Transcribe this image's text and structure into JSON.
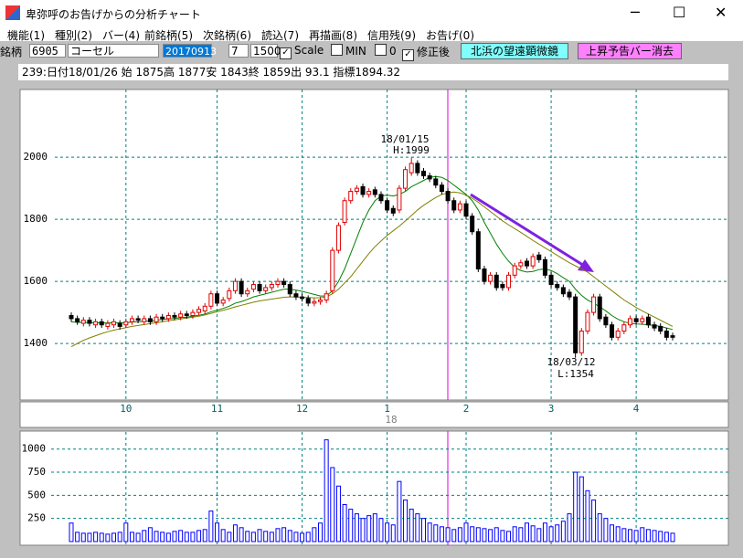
{
  "window": {
    "title": "卑弥呼のお告げからの分析チャート"
  },
  "menu": [
    "機能(1)",
    "種別(2)",
    "バー(4)",
    "前銘柄(5)",
    "次銘柄(6)",
    "読込(7)",
    "再描画(8)",
    "信用残(9)",
    "お告げ(0)"
  ],
  "toolbar": {
    "label": "銘柄",
    "code": "6905",
    "name": "コーセル",
    "date": "20170913",
    "period": "7",
    "count": "1500",
    "scale": "Scale",
    "min": "MIN",
    "min_value": "0",
    "adjusted": "修正後",
    "button1": "北浜の望遠顕微鏡",
    "button2": "上昇予告バー消去"
  },
  "info": "239:日付18/01/26 始 1875高 1877安 1843終 1859出 93.1 指標1894.32",
  "chart_data": {
    "type": "candlestick",
    "categories": [
      null,
      null,
      null,
      null,
      null,
      null,
      null,
      null,
      null,
      "10",
      null,
      null,
      null,
      null,
      null,
      null,
      null,
      null,
      null,
      null,
      null,
      null,
      null,
      null,
      "11",
      null,
      null,
      null,
      null,
      null,
      null,
      null,
      null,
      null,
      null,
      null,
      null,
      null,
      "12",
      null,
      null,
      null,
      null,
      null,
      null,
      null,
      null,
      null,
      null,
      null,
      null,
      null,
      "1",
      null,
      null,
      null,
      null,
      null,
      null,
      null,
      null,
      null,
      null,
      null,
      null,
      "2",
      null,
      null,
      null,
      null,
      null,
      null,
      null,
      null,
      null,
      null,
      null,
      null,
      null,
      "3",
      null,
      null,
      null,
      null,
      null,
      null,
      null,
      null,
      null,
      null,
      null,
      null,
      null,
      "4",
      null,
      null,
      null,
      null,
      null,
      null
    ],
    "year_label": "18",
    "open": [
      1490,
      1480,
      1465,
      1475,
      1460,
      1470,
      1455,
      1460,
      1465,
      1460,
      1470,
      1480,
      1470,
      1480,
      1470,
      1485,
      1480,
      1490,
      1485,
      1495,
      1490,
      1500,
      1505,
      1520,
      1560,
      1530,
      1545,
      1570,
      1600,
      1560,
      1575,
      1590,
      1570,
      1580,
      1590,
      1600,
      1590,
      1560,
      1550,
      1545,
      1530,
      1535,
      1540,
      1570,
      1700,
      1790,
      1860,
      1890,
      1905,
      1880,
      1895,
      1880,
      1860,
      1835,
      1830,
      1900,
      1950,
      1980,
      1955,
      1940,
      1930,
      1910,
      1890,
      1860,
      1830,
      1850,
      1810,
      1760,
      1640,
      1600,
      1620,
      1590,
      1580,
      1620,
      1650,
      1665,
      1650,
      1685,
      1670,
      1620,
      1590,
      1580,
      1565,
      1550,
      1370,
      1440,
      1500,
      1550,
      1485,
      1460,
      1420,
      1440,
      1460,
      1480,
      1470,
      1485,
      1460,
      1455,
      1440,
      1425
    ],
    "high": [
      1500,
      1490,
      1485,
      1485,
      1480,
      1480,
      1475,
      1480,
      1475,
      1480,
      1490,
      1490,
      1490,
      1490,
      1495,
      1495,
      1500,
      1500,
      1505,
      1505,
      1510,
      1520,
      1530,
      1570,
      1570,
      1550,
      1580,
      1610,
      1610,
      1580,
      1600,
      1600,
      1590,
      1600,
      1610,
      1610,
      1600,
      1570,
      1560,
      1555,
      1545,
      1550,
      1570,
      1710,
      1790,
      1870,
      1900,
      1910,
      1915,
      1900,
      1905,
      1890,
      1870,
      1845,
      1910,
      1970,
      1999,
      1990,
      1965,
      1950,
      1940,
      1920,
      1900,
      1870,
      1860,
      1860,
      1820,
      1770,
      1650,
      1630,
      1630,
      1600,
      1630,
      1660,
      1670,
      1675,
      1690,
      1695,
      1680,
      1630,
      1600,
      1590,
      1575,
      1560,
      1450,
      1510,
      1560,
      1560,
      1495,
      1470,
      1450,
      1470,
      1490,
      1490,
      1490,
      1495,
      1470,
      1465,
      1450,
      1435
    ],
    "low": [
      1470,
      1460,
      1455,
      1455,
      1450,
      1450,
      1445,
      1450,
      1445,
      1450,
      1460,
      1465,
      1460,
      1460,
      1460,
      1470,
      1470,
      1475,
      1475,
      1480,
      1480,
      1490,
      1495,
      1510,
      1520,
      1520,
      1535,
      1560,
      1550,
      1550,
      1565,
      1560,
      1560,
      1570,
      1580,
      1580,
      1550,
      1540,
      1535,
      1520,
      1520,
      1525,
      1530,
      1560,
      1690,
      1780,
      1850,
      1880,
      1870,
      1870,
      1870,
      1850,
      1820,
      1810,
      1820,
      1890,
      1940,
      1940,
      1930,
      1920,
      1900,
      1880,
      1850,
      1820,
      1820,
      1800,
      1750,
      1630,
      1590,
      1590,
      1570,
      1570,
      1570,
      1610,
      1640,
      1640,
      1640,
      1660,
      1610,
      1580,
      1570,
      1550,
      1540,
      1354,
      1360,
      1430,
      1490,
      1470,
      1450,
      1410,
      1410,
      1430,
      1450,
      1460,
      1460,
      1450,
      1440,
      1430,
      1410,
      1410
    ],
    "close": [
      1480,
      1470,
      1475,
      1465,
      1470,
      1460,
      1465,
      1470,
      1455,
      1470,
      1480,
      1475,
      1480,
      1470,
      1485,
      1480,
      1490,
      1485,
      1495,
      1490,
      1500,
      1510,
      1520,
      1560,
      1530,
      1540,
      1570,
      1600,
      1560,
      1570,
      1590,
      1570,
      1580,
      1590,
      1600,
      1590,
      1560,
      1550,
      1545,
      1530,
      1535,
      1540,
      1560,
      1700,
      1780,
      1860,
      1890,
      1900,
      1880,
      1890,
      1880,
      1860,
      1830,
      1820,
      1900,
      1960,
      1980,
      1950,
      1940,
      1930,
      1910,
      1890,
      1860,
      1830,
      1850,
      1810,
      1760,
      1640,
      1600,
      1620,
      1580,
      1580,
      1620,
      1650,
      1660,
      1650,
      1680,
      1670,
      1620,
      1590,
      1580,
      1560,
      1550,
      1370,
      1440,
      1500,
      1550,
      1480,
      1460,
      1420,
      1440,
      1460,
      1480,
      1470,
      1480,
      1460,
      1450,
      1440,
      1420,
      1420
    ],
    "up_color": "#e00000",
    "down_color": "#000000",
    "ma_series": [
      {
        "color": "#008000",
        "values": [
          1470,
          1468,
          1468,
          1467,
          1467,
          1466,
          1466,
          1467,
          1466,
          1467,
          1469,
          1470,
          1472,
          1472,
          1475,
          1477,
          1479,
          1481,
          1483,
          1485,
          1488,
          1491,
          1495,
          1502,
          1507,
          1513,
          1520,
          1530,
          1535,
          1542,
          1550,
          1555,
          1560,
          1565,
          1570,
          1575,
          1575,
          1572,
          1568,
          1563,
          1558,
          1553,
          1553,
          1570,
          1600,
          1640,
          1690,
          1740,
          1790,
          1830,
          1860,
          1875,
          1878,
          1875,
          1880,
          1890,
          1905,
          1915,
          1925,
          1935,
          1938,
          1935,
          1925,
          1910,
          1895,
          1880,
          1860,
          1830,
          1790,
          1755,
          1720,
          1690,
          1665,
          1645,
          1635,
          1630,
          1632,
          1638,
          1640,
          1635,
          1625,
          1612,
          1600,
          1575,
          1555,
          1540,
          1530,
          1518,
          1505,
          1490,
          1478,
          1470,
          1465,
          1463,
          1462,
          1460,
          1458,
          1455,
          1450,
          1445
        ]
      },
      {
        "color": "#808000",
        "values": [
          1390,
          1400,
          1410,
          1418,
          1425,
          1432,
          1438,
          1443,
          1447,
          1451,
          1455,
          1458,
          1461,
          1464,
          1467,
          1470,
          1473,
          1476,
          1479,
          1482,
          1485,
          1488,
          1492,
          1497,
          1502,
          1507,
          1512,
          1518,
          1523,
          1528,
          1533,
          1537,
          1540,
          1543,
          1546,
          1549,
          1550,
          1550,
          1549,
          1548,
          1547,
          1547,
          1550,
          1560,
          1575,
          1595,
          1615,
          1640,
          1665,
          1690,
          1712,
          1730,
          1748,
          1763,
          1778,
          1795,
          1812,
          1830,
          1845,
          1858,
          1870,
          1880,
          1885,
          1888,
          1885,
          1878,
          1868,
          1855,
          1840,
          1825,
          1810,
          1795,
          1782,
          1770,
          1758,
          1745,
          1732,
          1720,
          1708,
          1696,
          1684,
          1672,
          1660,
          1650,
          1640,
          1630,
          1615,
          1600,
          1585,
          1570,
          1555,
          1540,
          1528,
          1516,
          1505,
          1495,
          1485,
          1475,
          1465,
          1455
        ]
      }
    ],
    "ylim": [
      1218,
      2218
    ],
    "yticks": [
      1400,
      1600,
      1800,
      2000
    ],
    "grid": true,
    "annotations": [
      "18/01/15",
      "H:1999",
      "18/03/12",
      "L:1354"
    ],
    "volume": {
      "color": "#0000ff",
      "ylim": [
        0,
        1185
      ],
      "yticks": [
        250,
        500,
        750,
        1000
      ],
      "values": [
        200,
        100,
        90,
        90,
        100,
        90,
        80,
        90,
        100,
        200,
        100,
        90,
        120,
        150,
        110,
        100,
        90,
        110,
        120,
        100,
        100,
        120,
        130,
        330,
        200,
        130,
        100,
        180,
        150,
        110,
        100,
        130,
        110,
        100,
        140,
        150,
        120,
        100,
        90,
        100,
        150,
        200,
        1100,
        800,
        600,
        400,
        350,
        300,
        250,
        280,
        300,
        250,
        200,
        180,
        650,
        450,
        350,
        300,
        250,
        200,
        180,
        160,
        150,
        130,
        150,
        200,
        160,
        150,
        140,
        130,
        150,
        120,
        110,
        160,
        150,
        200,
        170,
        140,
        200,
        160,
        180,
        220,
        300,
        750,
        700,
        550,
        450,
        300,
        250,
        180,
        160,
        140,
        130,
        120,
        150,
        130,
        120,
        110,
        100,
        90
      ]
    }
  }
}
